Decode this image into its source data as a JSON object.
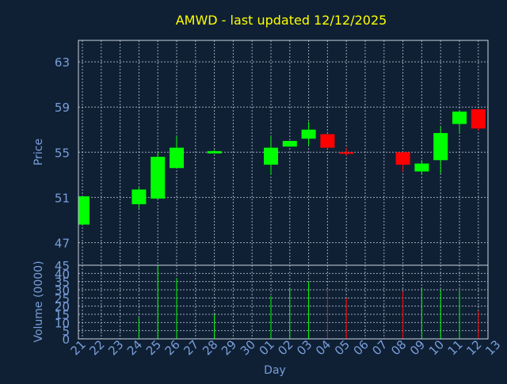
{
  "chart_data": {
    "type": "candlestick",
    "title": "AMWD - last updated 12/12/2025",
    "xlabel": "Day",
    "price_panel": {
      "ylabel": "Price",
      "yticks": [
        45,
        47,
        51,
        55,
        59,
        63
      ],
      "ylim": [
        45,
        64.9
      ],
      "grid": true
    },
    "volume_panel": {
      "ylabel": "Volume (0000)",
      "yticks": [
        0,
        5,
        10,
        15,
        20,
        25,
        30,
        35,
        40
      ],
      "ylim": [
        0,
        45
      ],
      "grid": true
    },
    "categories": [
      "21",
      "22",
      "23",
      "24",
      "25",
      "26",
      "27",
      "28",
      "29",
      "30",
      "01",
      "02",
      "03",
      "04",
      "05",
      "06",
      "07",
      "08",
      "09",
      "10",
      "11",
      "12",
      "13"
    ],
    "candles": [
      {
        "day": "21",
        "open": 48.6,
        "high": 51.1,
        "low": 48.6,
        "close": 51.1,
        "volume": 0
      },
      {
        "day": "24",
        "open": 50.4,
        "high": 51.9,
        "low": 50.0,
        "close": 51.7,
        "volume": 13
      },
      {
        "day": "25",
        "open": 50.9,
        "high": 55.0,
        "low": 50.9,
        "close": 54.6,
        "volume": 45
      },
      {
        "day": "26",
        "open": 53.6,
        "high": 56.4,
        "low": 53.6,
        "close": 55.4,
        "volume": 37
      },
      {
        "day": "28",
        "open": 54.9,
        "high": 55.2,
        "low": 54.9,
        "close": 55.1,
        "volume": 15
      },
      {
        "day": "01",
        "open": 53.9,
        "high": 56.4,
        "low": 53.0,
        "close": 55.4,
        "volume": 26
      },
      {
        "day": "02",
        "open": 55.5,
        "high": 56.0,
        "low": 55.5,
        "close": 56.0,
        "volume": 31
      },
      {
        "day": "03",
        "open": 56.2,
        "high": 57.7,
        "low": 55.6,
        "close": 57.0,
        "volume": 35
      },
      {
        "day": "04",
        "open": 56.6,
        "high": 56.6,
        "low": 55.3,
        "close": 55.4,
        "volume": 30
      },
      {
        "day": "05",
        "open": 55.0,
        "high": 55.4,
        "low": 54.7,
        "close": 54.9,
        "volume": 25
      },
      {
        "day": "08",
        "open": 55.0,
        "high": 55.0,
        "low": 53.3,
        "close": 53.9,
        "volume": 29
      },
      {
        "day": "09",
        "open": 53.3,
        "high": 54.3,
        "low": 53.0,
        "close": 54.0,
        "volume": 31
      },
      {
        "day": "10",
        "open": 54.3,
        "high": 57.3,
        "low": 53.1,
        "close": 56.7,
        "volume": 30
      },
      {
        "day": "11",
        "open": 57.5,
        "high": 58.7,
        "low": 56.7,
        "close": 58.6,
        "volume": 29
      },
      {
        "day": "12",
        "open": 58.8,
        "high": 58.8,
        "low": 56.9,
        "close": 57.1,
        "volume": 17
      }
    ],
    "colors": {
      "up": "#00ff00",
      "down": "#ff0000",
      "background": "#0f2035",
      "grid": "#cbd4de",
      "axis_text": "#7a9ed8",
      "title": "#ffff00"
    }
  }
}
